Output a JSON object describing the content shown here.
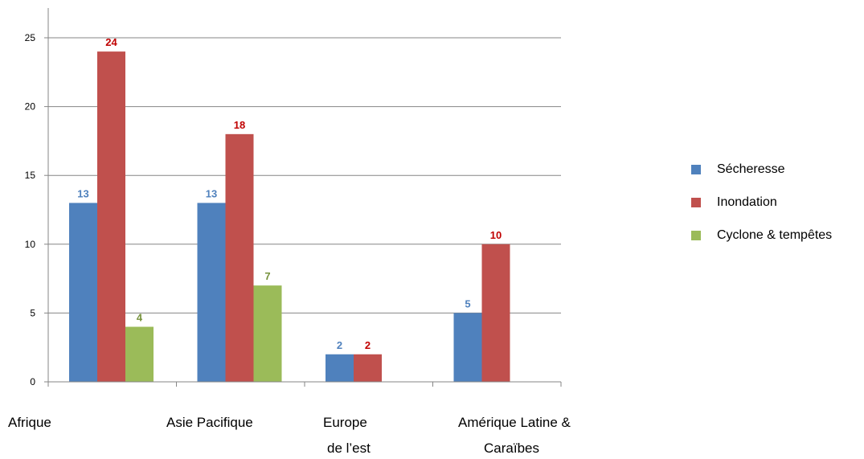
{
  "chart_data": {
    "type": "bar",
    "categories": [
      "Afrique",
      "Asie Pacifique",
      "Europe de l’est",
      "Amérique Latine & Caraïbes"
    ],
    "category_label_lines": [
      [
        "Afrique"
      ],
      [
        "Asie Pacifique"
      ],
      [
        "Europe",
        "de l’est"
      ],
      [
        "Amérique Latine &",
        "Caraïbes"
      ]
    ],
    "series": [
      {
        "name": "Sécheresse",
        "values": [
          13,
          13,
          2,
          5
        ],
        "color": "#4F81BD",
        "label_color": "#4F81BD"
      },
      {
        "name": "Inondation",
        "values": [
          24,
          18,
          2,
          10
        ],
        "color": "#C0504D",
        "label_color": "#C00000"
      },
      {
        "name": "Cyclone & tempêtes",
        "values": [
          4,
          7,
          null,
          null
        ],
        "color": "#9BBB59",
        "label_color": "#76923C"
      }
    ],
    "yticks": [
      0,
      5,
      10,
      15,
      20,
      25
    ],
    "ylim": [
      0,
      26.6
    ],
    "grid": true,
    "legend_position": "right",
    "title": "",
    "xlabel": "",
    "ylabel": ""
  }
}
